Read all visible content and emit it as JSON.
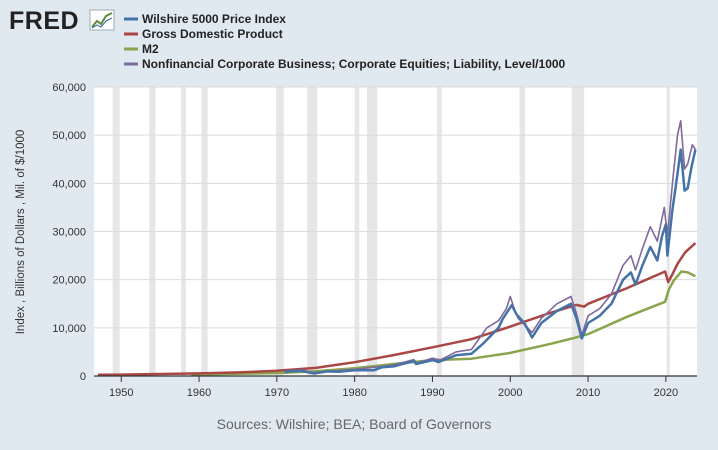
{
  "logo": {
    "text": "FRED",
    "icon": "trend-line-icon"
  },
  "source_note": "Sources: Wilshire; BEA; Board of Governors",
  "chart_data": {
    "type": "line",
    "ylabel": "Index , Billions of Dollars , Mil. of $/1000",
    "ylim": [
      0,
      60000
    ],
    "xlim": [
      1946.5,
      2024.0
    ],
    "y_ticks": [
      0,
      10000,
      20000,
      30000,
      40000,
      50000,
      60000
    ],
    "y_tick_labels": [
      "0",
      "10,000",
      "20,000",
      "30,000",
      "40,000",
      "50,000",
      "60,000"
    ],
    "x_ticks": [
      1950,
      1960,
      1970,
      1980,
      1990,
      2000,
      2010,
      2020
    ],
    "x_tick_labels": [
      "1950",
      "1960",
      "1970",
      "1980",
      "1990",
      "2000",
      "2010",
      "2020"
    ],
    "grid": "horizontal",
    "legend_position": "top",
    "recessions": [
      [
        1948.9,
        1949.8
      ],
      [
        1953.6,
        1954.4
      ],
      [
        1957.7,
        1958.3
      ],
      [
        1960.3,
        1961.1
      ],
      [
        1969.9,
        1970.9
      ],
      [
        1973.9,
        1975.2
      ],
      [
        1980.0,
        1980.6
      ],
      [
        1981.6,
        1982.9
      ],
      [
        1990.6,
        1991.2
      ],
      [
        2001.2,
        2001.9
      ],
      [
        2007.9,
        2009.5
      ],
      [
        2020.1,
        2020.4
      ]
    ],
    "series": [
      {
        "name": "Wilshire 5000 Price Index",
        "color": "#4572a7",
        "x": [
          1971.0,
          1972.9,
          1974.8,
          1976.5,
          1978.0,
          1980.0,
          1982.5,
          1983.5,
          1985.0,
          1987.6,
          1987.9,
          1990.0,
          1990.8,
          1993.0,
          1995.0,
          1996.5,
          1998.5,
          1999.0,
          2000.2,
          2000.8,
          2001.8,
          2002.8,
          2004.0,
          2006.0,
          2007.8,
          2008.5,
          2009.2,
          2010.0,
          2011.5,
          2013.0,
          2014.5,
          2015.5,
          2016.1,
          2017.0,
          2018.0,
          2018.9,
          2019.5,
          2020.0,
          2020.2,
          2020.8,
          2021.5,
          2021.9,
          2022.4,
          2022.8,
          2023.3,
          2023.8
        ],
        "y": [
          900,
          1100,
          550,
          950,
          900,
          1200,
          1200,
          1800,
          2000,
          3100,
          2500,
          3300,
          2900,
          4300,
          4600,
          6700,
          10000,
          11800,
          14700,
          12800,
          11000,
          8000,
          11000,
          13500,
          15000,
          12000,
          7800,
          11000,
          12500,
          15000,
          20000,
          21500,
          19000,
          23000,
          26800,
          24000,
          29000,
          31500,
          25000,
          34000,
          42000,
          47000,
          38500,
          39000,
          43500,
          47000
        ]
      },
      {
        "name": "Gross Domestic Product",
        "color": "#aa4643",
        "x": [
          1947.0,
          1950.0,
          1955.0,
          1960.0,
          1965.0,
          1970.0,
          1975.0,
          1980.0,
          1985.0,
          1990.0,
          1995.0,
          2000.0,
          2005.0,
          2008.5,
          2009.5,
          2010.0,
          2015.0,
          2019.9,
          2020.3,
          2020.8,
          2021.5,
          2022.5,
          2023.8
        ],
        "y": [
          250,
          300,
          420,
          540,
          740,
          1070,
          1690,
          2860,
          4340,
          5960,
          7640,
          10250,
          13040,
          14770,
          14400,
          15000,
          18240,
          21700,
          19500,
          21000,
          23300,
          25700,
          27600
        ]
      },
      {
        "name": "M2",
        "color": "#89a54e",
        "x": [
          1959.0,
          1965.0,
          1970.0,
          1975.0,
          1980.0,
          1985.0,
          1990.0,
          1995.0,
          2000.0,
          2005.0,
          2008.0,
          2010.0,
          2015.0,
          2019.9,
          2020.4,
          2021.0,
          2022.0,
          2022.8,
          2023.8
        ],
        "y": [
          300,
          450,
          600,
          1000,
          1600,
          2500,
          3300,
          3600,
          4800,
          6600,
          7800,
          8700,
          12300,
          15400,
          18000,
          19800,
          21700,
          21500,
          20700
        ]
      },
      {
        "name": "Nonfinancial Corporate Business; Corporate Equities; Liability, Level/1000",
        "color": "#80699b",
        "x": [
          1971.0,
          1973.0,
          1974.8,
          1977.0,
          1980.0,
          1983.5,
          1985.0,
          1987.6,
          1988.0,
          1990.0,
          1991.0,
          1993.0,
          1995.0,
          1997.0,
          1998.5,
          1999.5,
          2000.0,
          2000.5,
          2001.0,
          2002.8,
          2004.0,
          2006.0,
          2007.8,
          2008.5,
          2009.2,
          2010.0,
          2011.5,
          2013.0,
          2014.5,
          2015.5,
          2016.1,
          2017.0,
          2018.0,
          2018.9,
          2019.8,
          2020.2,
          2020.9,
          2021.5,
          2021.9,
          2022.4,
          2022.8,
          2023.4,
          2023.8
        ],
        "y": [
          1000,
          1300,
          700,
          1000,
          1400,
          2000,
          2300,
          3400,
          2700,
          3700,
          3300,
          5000,
          5500,
          10000,
          11500,
          14000,
          16500,
          14000,
          12000,
          9000,
          12000,
          15000,
          16500,
          13000,
          8500,
          12500,
          14000,
          17000,
          23000,
          25000,
          22000,
          26500,
          31000,
          28000,
          35000,
          29000,
          41000,
          50000,
          53000,
          43000,
          44000,
          48000,
          47000
        ]
      }
    ]
  }
}
